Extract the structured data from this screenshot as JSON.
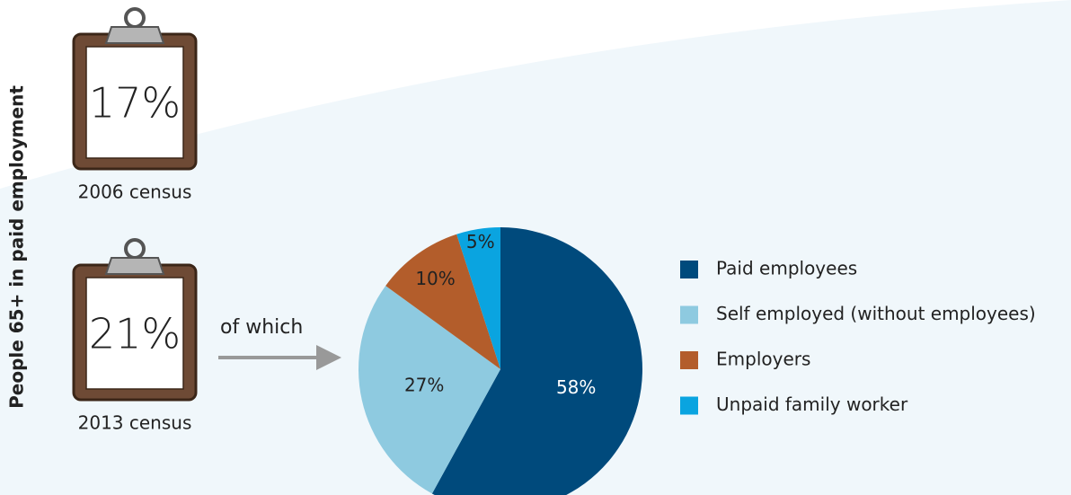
{
  "side_label": "People 65+ in paid employment",
  "clipboards": [
    {
      "percent": "17%",
      "label": "2006 census"
    },
    {
      "percent": "21%",
      "label": "2013 census"
    }
  ],
  "arrow_label": "of which",
  "chart_data": {
    "type": "pie",
    "categories": [
      "Paid employees",
      "Self employed (without employees)",
      "Employers",
      "Unpaid family worker"
    ],
    "values": [
      58,
      27,
      10,
      5
    ],
    "value_labels": [
      "58%",
      "27%",
      "10%",
      "5%"
    ],
    "colors": [
      "#004a7c",
      "#8ecae0",
      "#b35d2b",
      "#0aa4e0"
    ]
  }
}
